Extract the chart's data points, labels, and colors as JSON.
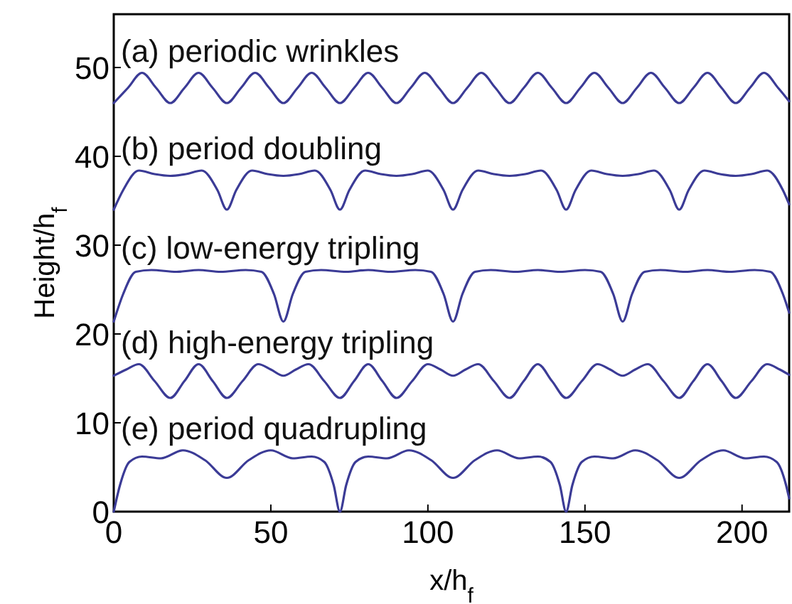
{
  "chart_data": {
    "type": "line",
    "xlabel": "x/h$_{f}$",
    "ylabel": "Height/h$_{f}$",
    "xlim": [
      0,
      215
    ],
    "ylim": [
      0,
      56
    ],
    "xticks": [
      0,
      50,
      100,
      150,
      200
    ],
    "yticks": [
      0,
      10,
      20,
      30,
      40,
      50
    ],
    "grid": false,
    "marker": "none",
    "line_style": "solid",
    "series": [
      {
        "name": "(a) periodic wrinkles",
        "color": "#3b3b96",
        "x": [
          0,
          4.5,
          9,
          13.5,
          18,
          22.5,
          27,
          31.5,
          36,
          40.5,
          45,
          49.5,
          54,
          58.5,
          63,
          67.5,
          72,
          76.5,
          81,
          85.5,
          90,
          94.5,
          99,
          103.5,
          108,
          112.5,
          117,
          121.5,
          126,
          130.5,
          135,
          139.5,
          144,
          148.5,
          153,
          157.5,
          162,
          166.5,
          171,
          175.5,
          180,
          184.5,
          189,
          193.5,
          198,
          202.5,
          207,
          211.5,
          215
        ],
        "values": [
          46.0,
          47.7,
          49.4,
          47.7,
          46.0,
          47.7,
          49.4,
          47.7,
          46.0,
          47.7,
          49.4,
          47.7,
          46.0,
          47.7,
          49.4,
          47.7,
          46.0,
          47.7,
          49.4,
          47.7,
          46.0,
          47.7,
          49.4,
          47.7,
          46.0,
          47.7,
          49.4,
          47.7,
          46.0,
          47.7,
          49.4,
          47.7,
          46.0,
          47.7,
          49.4,
          47.7,
          46.0,
          47.7,
          49.4,
          47.7,
          46.0,
          47.7,
          49.4,
          47.7,
          46.0,
          47.7,
          49.4,
          47.7,
          46.2
        ]
      },
      {
        "name": "(b) period doubling",
        "color": "#3b3b96",
        "x": [
          0,
          3,
          8,
          13,
          18,
          23,
          28,
          33,
          36,
          39,
          44,
          49,
          54,
          59,
          64,
          69,
          72,
          75,
          80,
          85,
          90,
          95,
          100,
          105,
          108,
          111,
          116,
          121,
          126,
          131,
          136,
          141,
          144,
          147,
          152,
          157,
          162,
          167,
          172,
          177,
          180,
          183,
          188,
          193,
          198,
          203,
          208,
          213,
          215
        ],
        "values": [
          34.0,
          36.2,
          38.4,
          38.0,
          37.8,
          38.0,
          38.4,
          36.2,
          34.0,
          36.2,
          38.4,
          38.0,
          37.8,
          38.0,
          38.4,
          36.2,
          34.0,
          36.2,
          38.4,
          38.0,
          37.8,
          38.0,
          38.4,
          36.2,
          34.0,
          36.2,
          38.4,
          38.0,
          37.8,
          38.0,
          38.4,
          36.2,
          34.0,
          36.2,
          38.4,
          38.0,
          37.8,
          38.0,
          38.4,
          36.2,
          34.0,
          36.2,
          38.4,
          38.0,
          37.8,
          38.0,
          38.4,
          36.2,
          34.6
        ]
      },
      {
        "name": "(c) low-energy tripling",
        "color": "#3b3b96",
        "x": [
          0,
          3,
          7,
          12,
          20,
          27,
          34,
          42,
          47,
          51,
          54,
          57,
          61,
          66,
          74,
          81,
          88,
          96,
          101,
          105,
          108,
          111,
          115,
          120,
          128,
          135,
          142,
          150,
          155,
          159,
          162,
          165,
          169,
          174,
          182,
          189,
          196,
          204,
          209,
          213,
          215
        ],
        "values": [
          21.4,
          24.5,
          27.0,
          27.2,
          27.0,
          27.2,
          27.0,
          27.2,
          27.0,
          24.5,
          21.4,
          24.5,
          27.0,
          27.2,
          27.0,
          27.2,
          27.0,
          27.2,
          27.0,
          24.5,
          21.4,
          24.5,
          27.0,
          27.2,
          27.0,
          27.2,
          27.0,
          27.2,
          27.0,
          24.5,
          21.4,
          24.5,
          27.0,
          27.2,
          27.0,
          27.2,
          27.0,
          27.2,
          27.0,
          24.5,
          22.4
        ]
      },
      {
        "name": "(d) high-energy tripling",
        "color": "#3b3b96",
        "x": [
          0,
          4,
          8,
          13,
          18,
          22.5,
          27,
          31.5,
          36,
          41,
          46,
          50,
          54,
          58,
          62,
          67,
          72,
          76.5,
          81,
          85.5,
          90,
          95,
          100,
          104,
          108,
          112,
          116,
          121,
          126,
          130.5,
          135,
          139.5,
          144,
          149,
          154,
          158,
          162,
          166,
          170,
          175,
          180,
          184.5,
          189,
          193.5,
          198,
          203,
          208,
          212,
          215
        ],
        "values": [
          15.3,
          16.0,
          16.6,
          14.7,
          12.8,
          14.7,
          16.6,
          14.7,
          12.8,
          14.7,
          16.6,
          16.0,
          15.3,
          16.0,
          16.6,
          14.7,
          12.8,
          14.7,
          16.6,
          14.7,
          12.8,
          14.7,
          16.6,
          16.0,
          15.3,
          16.0,
          16.6,
          14.7,
          12.8,
          14.7,
          16.6,
          14.7,
          12.8,
          14.7,
          16.6,
          16.0,
          15.3,
          16.0,
          16.6,
          14.7,
          12.8,
          14.7,
          16.6,
          14.7,
          12.8,
          14.7,
          16.6,
          16.0,
          15.4
        ]
      },
      {
        "name": "(e) period quadrupling",
        "color": "#3b3b96",
        "x": [
          0,
          2,
          5,
          9,
          15,
          22,
          29,
          36,
          43,
          50,
          57,
          63,
          67,
          70,
          72,
          74,
          77,
          81,
          87,
          94,
          101,
          108,
          115,
          122,
          129,
          135,
          139,
          142,
          144,
          146,
          149,
          153,
          159,
          166,
          173,
          180,
          187,
          194,
          201,
          207,
          211,
          214,
          215
        ],
        "values": [
          0.0,
          3.0,
          5.6,
          6.2,
          6.0,
          6.9,
          5.8,
          3.8,
          5.8,
          6.9,
          6.0,
          6.2,
          5.6,
          3.0,
          0.0,
          3.0,
          5.6,
          6.2,
          6.0,
          6.9,
          5.8,
          3.8,
          5.8,
          6.9,
          6.0,
          6.2,
          5.6,
          3.0,
          0.0,
          3.0,
          5.6,
          6.2,
          6.0,
          6.9,
          5.8,
          3.8,
          5.8,
          6.9,
          6.0,
          6.2,
          5.6,
          3.0,
          1.5
        ]
      }
    ]
  }
}
